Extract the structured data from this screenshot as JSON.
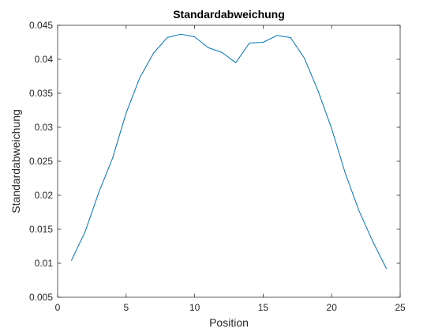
{
  "chart_data": {
    "type": "line",
    "title": "Standardabweichung",
    "xlabel": "Position",
    "ylabel": "Standardabweichung",
    "xlim": [
      0,
      25
    ],
    "ylim": [
      0.005,
      0.045
    ],
    "xticks": [
      "0",
      "5",
      "10",
      "15",
      "20",
      "25"
    ],
    "yticks": [
      "0.005",
      "0.01",
      "0.015",
      "0.02",
      "0.025",
      "0.03",
      "0.035",
      "0.04",
      "0.045"
    ],
    "grid": false,
    "series": [
      {
        "color": "#0072BD",
        "x": [
          1,
          2,
          3,
          4,
          5,
          6,
          7,
          8,
          9,
          10,
          11,
          12,
          13,
          14,
          15,
          16,
          17,
          18,
          19,
          20,
          21,
          22,
          23,
          24
        ],
        "y": [
          0.0104,
          0.0146,
          0.0204,
          0.0254,
          0.0321,
          0.0373,
          0.0409,
          0.0432,
          0.0437,
          0.0433,
          0.0417,
          0.041,
          0.0395,
          0.0424,
          0.0425,
          0.0435,
          0.0432,
          0.0402,
          0.0354,
          0.0298,
          0.0232,
          0.0177,
          0.0132,
          0.0092
        ]
      }
    ]
  }
}
